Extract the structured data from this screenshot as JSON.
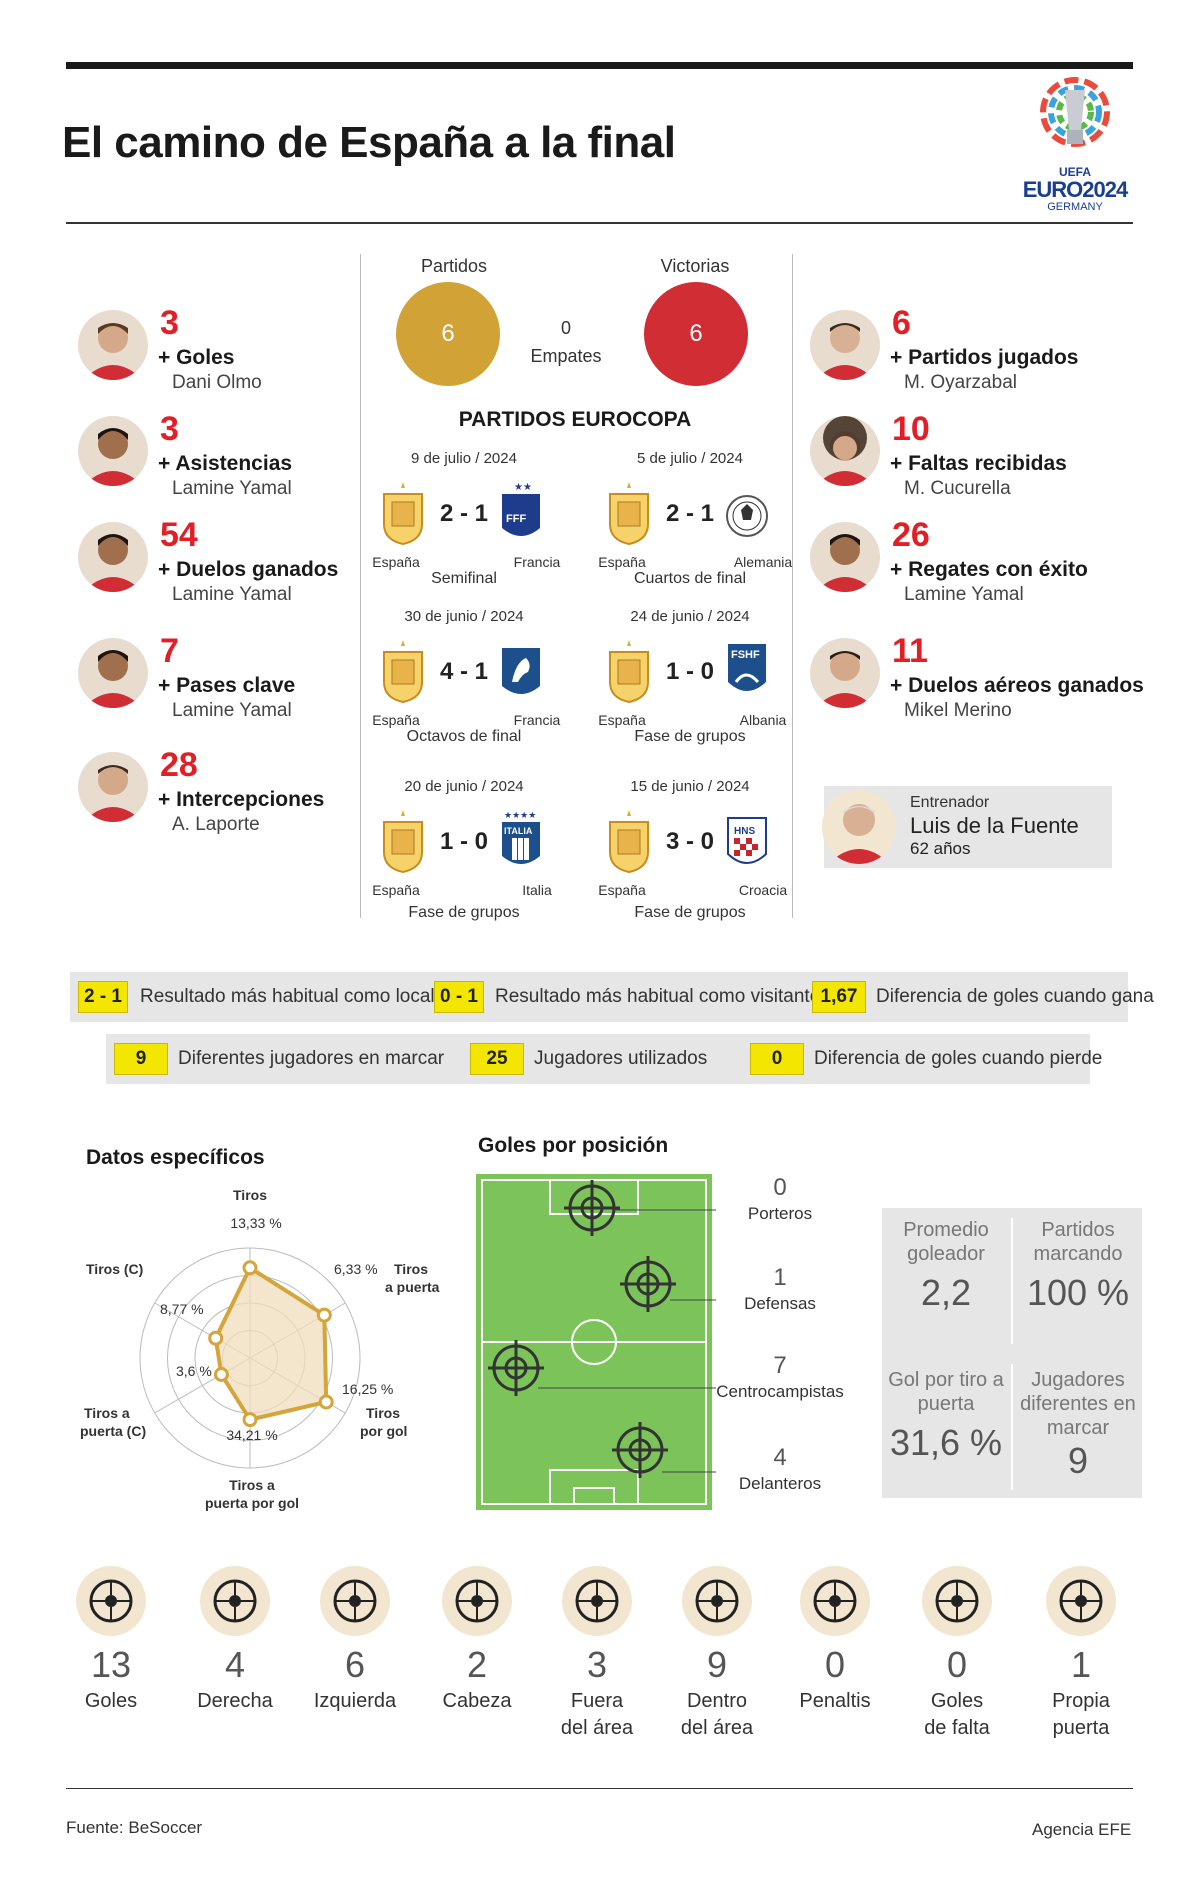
{
  "title": "El camino de España a la final",
  "logo": {
    "uefa": "UEFA",
    "euro": "EURO2024",
    "country": "GERMANY"
  },
  "left_players": [
    {
      "value": "3",
      "label": "+ Goles",
      "name": "Dani Olmo"
    },
    {
      "value": "3",
      "label": "+ Asistencias",
      "name": "Lamine Yamal"
    },
    {
      "value": "54",
      "label": "+ Duelos ganados",
      "name": "Lamine Yamal"
    },
    {
      "value": "7",
      "label": "+ Pases clave",
      "name": "Lamine Yamal"
    },
    {
      "value": "28",
      "label": "+ Intercepciones",
      "name": "A. Laporte"
    }
  ],
  "right_players": [
    {
      "value": "6",
      "label": "+ Partidos jugados",
      "name": "M. Oyarzabal"
    },
    {
      "value": "10",
      "label": "+ Faltas recibidas",
      "name": "M. Cucurella"
    },
    {
      "value": "26",
      "label": "+ Regates con éxito",
      "name": "Lamine Yamal"
    },
    {
      "value": "11",
      "label": "+ Duelos aéreos ganados",
      "name": "Mikel Merino"
    }
  ],
  "coach": {
    "role": "Entrenador",
    "name": "Luis de la Fuente",
    "age": "62 años"
  },
  "summary": {
    "partidos_label": "Partidos",
    "partidos": "6",
    "victorias_label": "Victorias",
    "victorias": "6",
    "empates": "0",
    "empates_label": "Empates"
  },
  "matches_title": "PARTIDOS EUROCOPA",
  "matches": [
    {
      "date": "9 de julio / 2024",
      "score": "2 - 1",
      "home": "España",
      "away": "Francia",
      "stage": "Semifinal"
    },
    {
      "date": "5 de julio / 2024",
      "score": "2 - 1",
      "home": "España",
      "away": "Alemania",
      "stage": "Cuartos de final"
    },
    {
      "date": "30 de junio / 2024",
      "score": "4 - 1",
      "home": "España",
      "away": "Francia",
      "stage": "Octavos de final"
    },
    {
      "date": "24 de junio / 2024",
      "score": "1 - 0",
      "home": "España",
      "away": "Albania",
      "stage": "Fase de grupos"
    },
    {
      "date": "20 de junio / 2024",
      "score": "1 - 0",
      "home": "España",
      "away": "Italia",
      "stage": "Fase de grupos"
    },
    {
      "date": "15 de junio / 2024",
      "score": "3 - 0",
      "home": "España",
      "away": "Croacia",
      "stage": "Fase de grupos"
    }
  ],
  "badges": {
    "ffr": "FFF",
    "fshf": "FSHF",
    "italia": "ITALIA",
    "hns": "HNS"
  },
  "facts_row1": [
    {
      "box": "2 - 1",
      "text": "Resultado más habitual como local"
    },
    {
      "box": "0 - 1",
      "text": "Resultado más habitual como visitante"
    },
    {
      "box": "1,67",
      "text": "Diferencia de goles cuando gana"
    }
  ],
  "facts_row2": [
    {
      "box": "9",
      "text": "Diferentes jugadores en marcar"
    },
    {
      "box": "25",
      "text": "Jugadores utilizados"
    },
    {
      "box": "0",
      "text": "Diferencia de goles cuando pierde"
    }
  ],
  "radar_title": "Datos específicos",
  "radar": {
    "axes": [
      "Tiros",
      "Tiros a puerta",
      "Tiros por gol",
      "Tiros a puerta por gol",
      "Tiros a puerta (C)",
      "Tiros (C)"
    ],
    "values_label": [
      "13,33 %",
      "6,33 %",
      "16,25 %",
      "34,21 %",
      "3,6 %",
      "8,77 %"
    ],
    "values": [
      0.82,
      0.78,
      0.8,
      0.56,
      0.3,
      0.36
    ],
    "color": "#d4a53a"
  },
  "pitch_title": "Goles por posición",
  "positions": [
    {
      "n": "0",
      "label": "Porteros"
    },
    {
      "n": "1",
      "label": "Defensas"
    },
    {
      "n": "7",
      "label": "Centrocampistas"
    },
    {
      "n": "4",
      "label": "Delanteros"
    }
  ],
  "stats_box": [
    {
      "h": "Promedio goleador",
      "v": "2,2"
    },
    {
      "h": "Partidos marcando",
      "v": "100 %"
    },
    {
      "h": "Gol por tiro a puerta",
      "v": "31,6 %"
    },
    {
      "h": "Jugadores diferentes en marcar",
      "v": "9"
    }
  ],
  "goal_types": [
    {
      "icon": "soccer-ball-icon",
      "n": "13",
      "label": "Goles"
    },
    {
      "icon": "right-foot-icon",
      "n": "4",
      "label": "Derecha"
    },
    {
      "icon": "left-foot-icon",
      "n": "6",
      "label": "Izquierda"
    },
    {
      "icon": "header-icon",
      "n": "2",
      "label": "Cabeza"
    },
    {
      "icon": "outside-box-icon",
      "n": "3",
      "label": "Fuera del área"
    },
    {
      "icon": "inside-box-icon",
      "n": "9",
      "label": "Dentro del área"
    },
    {
      "icon": "whistle-icon",
      "n": "0",
      "label": "Penaltis"
    },
    {
      "icon": "free-kick-icon",
      "n": "0",
      "label": "Goles de falta"
    },
    {
      "icon": "own-goal-icon",
      "n": "1",
      "label": "Propia puerta"
    }
  ],
  "footer": {
    "source": "Fuente: BeSoccer",
    "agency": "Agencia EFE"
  },
  "colors": {
    "gold": "#d1a236",
    "red": "#d12d34",
    "highlight": "#f3e600",
    "pitch": "#7cc45a"
  }
}
